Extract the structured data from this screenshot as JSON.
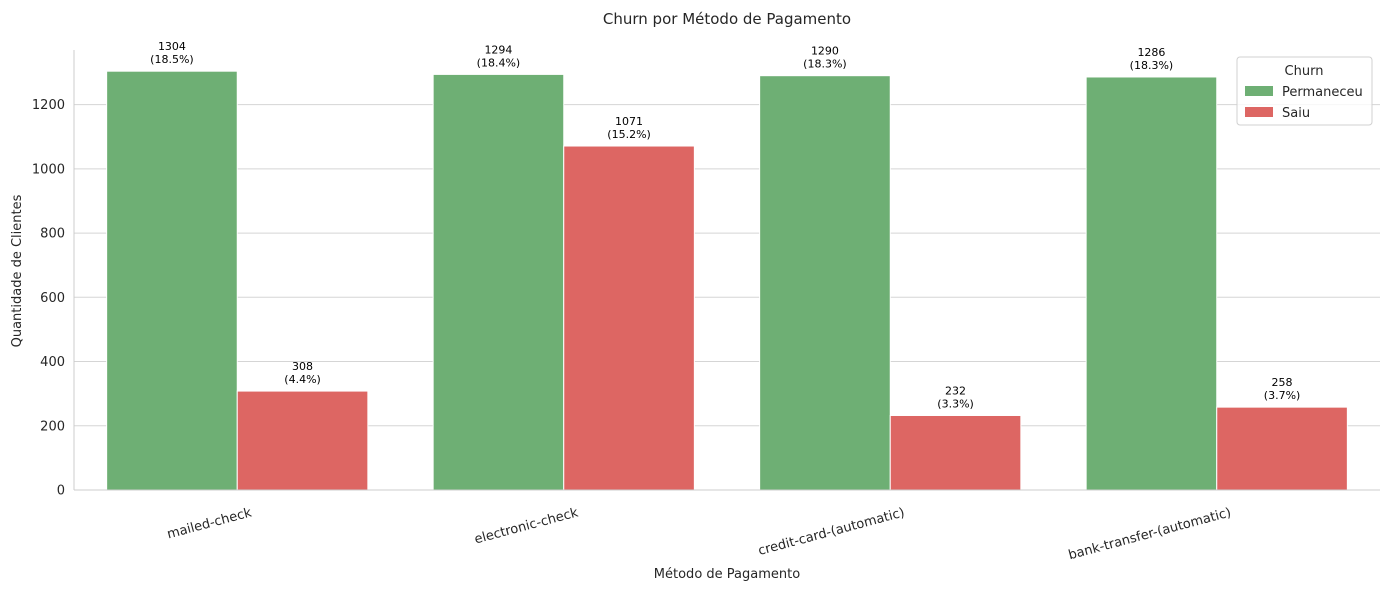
{
  "chart_data": {
    "type": "bar",
    "title": "Churn por Método de Pagamento",
    "xlabel": "Método de Pagamento",
    "ylabel": "Quantidade de Clientes",
    "categories": [
      "mailed-check",
      "electronic-check",
      "credit-card-(automatic)",
      "bank-transfer-(automatic)"
    ],
    "series": [
      {
        "name": "Permaneceu",
        "color": "#6eaf74",
        "values": [
          1304,
          1294,
          1290,
          1286
        ],
        "labels": [
          "1304",
          "1294",
          "1290",
          "1286"
        ],
        "percent_labels": [
          "(18.5%)",
          "(18.4%)",
          "(18.3%)",
          "(18.3%)"
        ]
      },
      {
        "name": "Saiu",
        "color": "#dd6663",
        "values": [
          308,
          1071,
          232,
          258
        ],
        "labels": [
          "308",
          "1071",
          "232",
          "258"
        ],
        "percent_labels": [
          "(4.4%)",
          "(15.2%)",
          "(3.3%)",
          "(3.7%)"
        ]
      }
    ],
    "legend_title": "Churn",
    "legend_position": "top-right",
    "ylim": [
      0,
      1370
    ],
    "yticks": [
      0,
      200,
      400,
      600,
      800,
      1000,
      1200
    ],
    "grid": "horizontal",
    "x_tick_rotation": 15
  }
}
